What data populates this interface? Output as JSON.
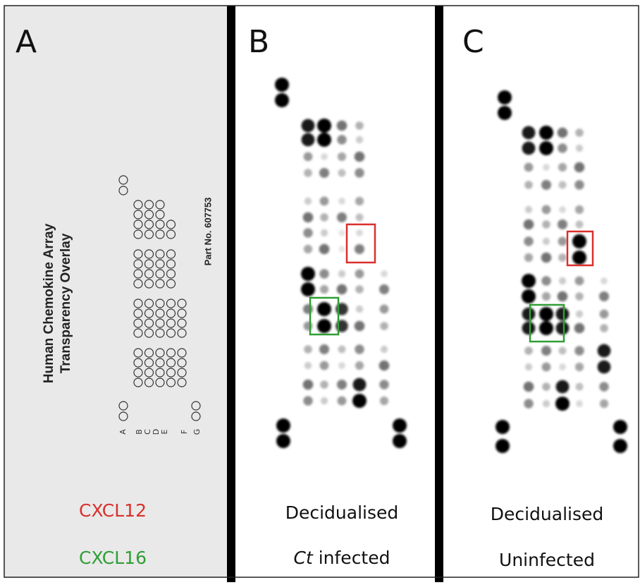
{
  "panels": [
    {
      "letter": "A",
      "overlay": {
        "title_lines": [
          "Human Chemokine Array",
          "Transparency Overlay"
        ],
        "part_no": "Part No. 607753",
        "row_labels": [
          "A",
          "B",
          "C",
          "D",
          "E",
          "F",
          "G"
        ]
      },
      "legend": [
        "CXCL12",
        "CXCL16"
      ]
    },
    {
      "letter": "B",
      "caption": [
        "Decidualised",
        {
          "italic": "Ct",
          "rest": "infected"
        }
      ]
    },
    {
      "letter": "C",
      "caption": [
        "Decidualised",
        "Uninfected"
      ]
    }
  ]
}
